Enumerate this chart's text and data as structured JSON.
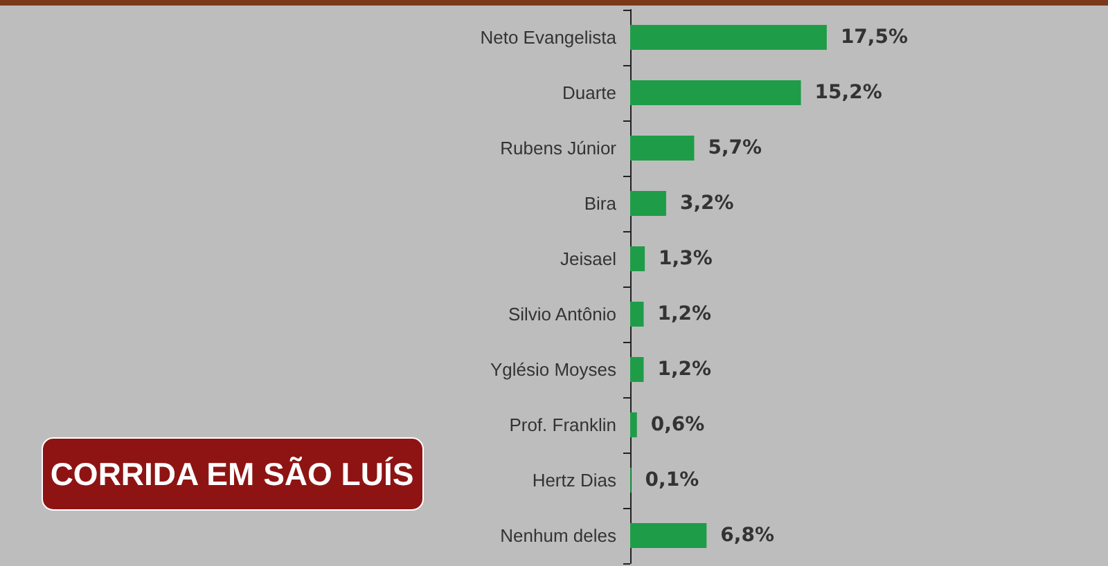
{
  "chart_data": {
    "type": "bar",
    "orientation": "horizontal",
    "title": "CORRIDA EM SÃO LUÍS",
    "categories": [
      "Neto Evangelista",
      "Duarte",
      "Rubens Júnior",
      "Bira",
      "Jeisael",
      "Silvio Antônio",
      "Yglésio Moyses",
      "Prof. Franklin",
      "Hertz Dias",
      "Nenhum deles"
    ],
    "values": [
      17.5,
      15.2,
      5.7,
      3.2,
      1.3,
      1.2,
      1.2,
      0.6,
      0.1,
      6.8
    ],
    "value_labels": [
      "17,5%",
      "15,2%",
      "5,7%",
      "3,2%",
      "1,3%",
      "1,2%",
      "1,2%",
      "0,6%",
      "0,1%",
      "6,8%"
    ],
    "color": "#1e9c48"
  }
}
